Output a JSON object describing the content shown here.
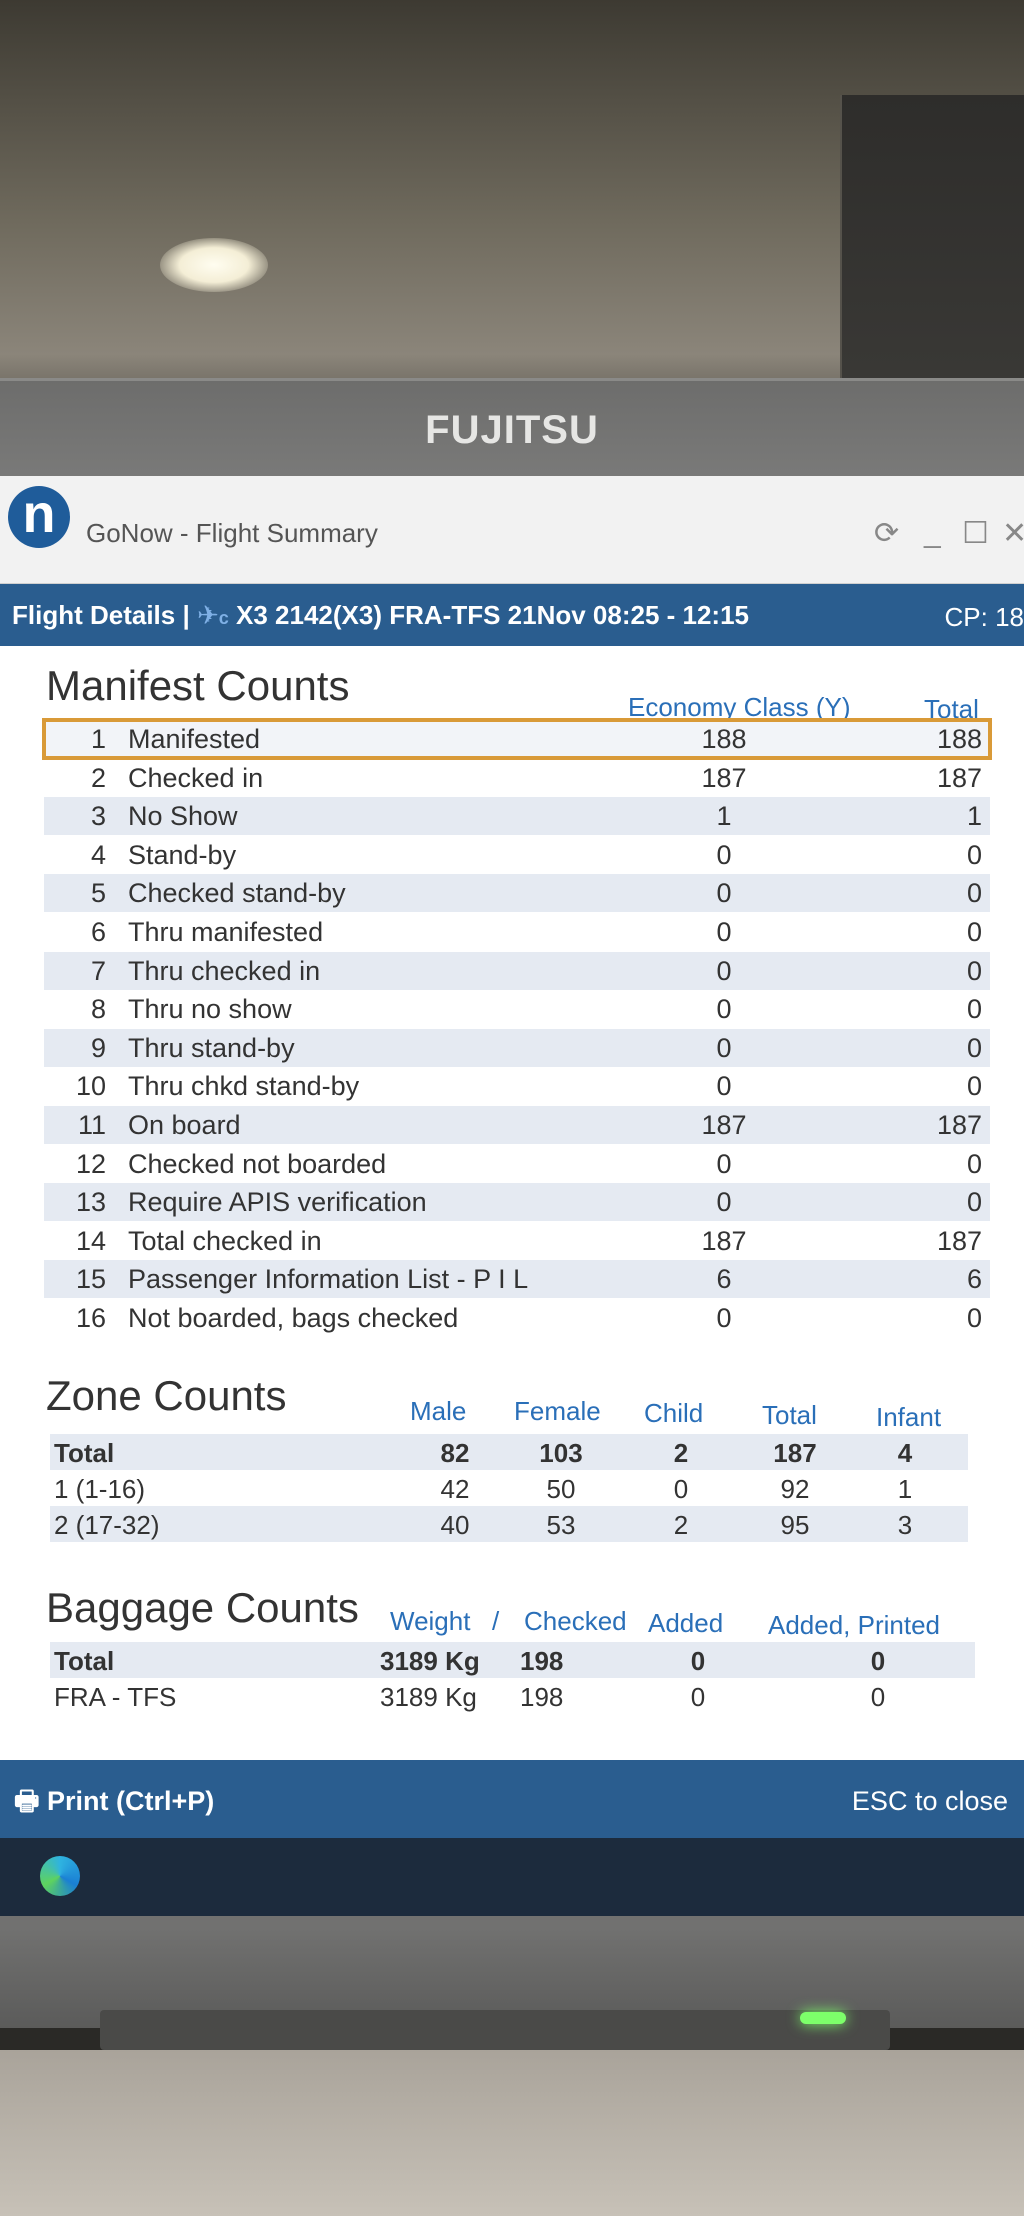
{
  "monitor_brand": "FUJITSU",
  "window": {
    "app_title": "GoNow - Flight Summary",
    "logo_letter": "n",
    "controls": [
      "⟳",
      "_",
      "☐",
      "✕"
    ]
  },
  "flight": {
    "label": "Flight Details |",
    "airline_icon": "plane-icon",
    "airline_suffix": "c",
    "flight_info": "X3 2142(X3)  FRA-TFS  21Nov 08:25 - 12:15",
    "cp": "CP: 18"
  },
  "manifest": {
    "title": "Manifest Counts",
    "col_economy": "Economy Class (Y)",
    "col_total": "Total",
    "rows": [
      {
        "num": "1",
        "label": "Manifested",
        "economy": "188",
        "total": "188"
      },
      {
        "num": "2",
        "label": "Checked in",
        "economy": "187",
        "total": "187"
      },
      {
        "num": "3",
        "label": "No Show",
        "economy": "1",
        "total": "1"
      },
      {
        "num": "4",
        "label": "Stand-by",
        "economy": "0",
        "total": "0"
      },
      {
        "num": "5",
        "label": "Checked stand-by",
        "economy": "0",
        "total": "0"
      },
      {
        "num": "6",
        "label": "Thru manifested",
        "economy": "0",
        "total": "0"
      },
      {
        "num": "7",
        "label": "Thru checked in",
        "economy": "0",
        "total": "0"
      },
      {
        "num": "8",
        "label": "Thru no show",
        "economy": "0",
        "total": "0"
      },
      {
        "num": "9",
        "label": "Thru stand-by",
        "economy": "0",
        "total": "0"
      },
      {
        "num": "10",
        "label": "Thru chkd stand-by",
        "economy": "0",
        "total": "0"
      },
      {
        "num": "11",
        "label": "On board",
        "economy": "187",
        "total": "187"
      },
      {
        "num": "12",
        "label": "Checked not boarded",
        "economy": "0",
        "total": "0"
      },
      {
        "num": "13",
        "label": "Require APIS verification",
        "economy": "0",
        "total": "0"
      },
      {
        "num": "14",
        "label": "Total checked in",
        "economy": "187",
        "total": "187"
      },
      {
        "num": "15",
        "label": "Passenger Information List - P I L",
        "economy": "6",
        "total": "6"
      },
      {
        "num": "16",
        "label": "Not boarded, bags checked",
        "economy": "0",
        "total": "0"
      }
    ]
  },
  "zone": {
    "title": "Zone Counts",
    "cols": {
      "male": "Male",
      "female": "Female",
      "child": "Child",
      "total": "Total",
      "infant": "Infant"
    },
    "rows": [
      {
        "label": "Total",
        "male": "82",
        "female": "103",
        "child": "2",
        "total": "187",
        "infant": "4"
      },
      {
        "label": "1 (1-16)",
        "male": "42",
        "female": "50",
        "child": "0",
        "total": "92",
        "infant": "1"
      },
      {
        "label": "2 (17-32)",
        "male": "40",
        "female": "53",
        "child": "2",
        "total": "95",
        "infant": "3"
      }
    ]
  },
  "baggage": {
    "title": "Baggage Counts",
    "cols": {
      "weight": "Weight",
      "sep": "/",
      "checked": "Checked",
      "added": "Added",
      "added_printed": "Added, Printed"
    },
    "rows": [
      {
        "label": "Total",
        "weight": "3189 Kg",
        "checked": "198",
        "added": "0",
        "added_printed": "0"
      },
      {
        "label": "FRA - TFS",
        "weight": "3189 Kg",
        "checked": "198",
        "added": "0",
        "added_printed": "0"
      }
    ]
  },
  "footer": {
    "print_label": "Print (Ctrl+P)",
    "close_label": "ESC to close"
  }
}
